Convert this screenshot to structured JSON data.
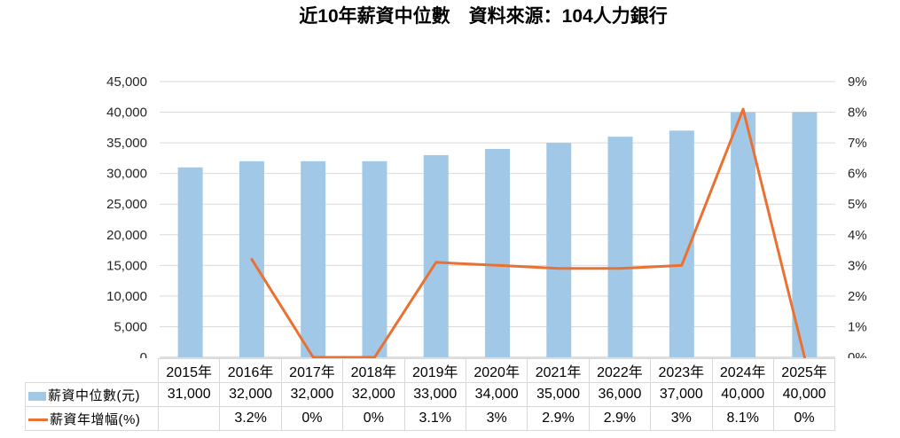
{
  "title": "近10年薪資中位數　資料來源：104人力銀行",
  "colors": {
    "bar": "#A2C8E8",
    "line": "#E97132",
    "gridline": "#D9D9D9",
    "baseline": "#BFBFBF",
    "axis_text": "#262626",
    "table_border": "#D9D9D9",
    "table_text": "#000000"
  },
  "chart_data": {
    "type": "bar",
    "subtype": "combo-bar-line",
    "title": "近10年薪資中位數　資料來源：104人力銀行",
    "categories": [
      "2015年",
      "2016年",
      "2017年",
      "2018年",
      "2019年",
      "2020年",
      "2021年",
      "2022年",
      "2023年",
      "2024年",
      "2025年"
    ],
    "series": [
      {
        "name": "薪資中位數(元)",
        "type": "bar",
        "axis": "left",
        "values": [
          31000,
          32000,
          32000,
          32000,
          33000,
          34000,
          35000,
          36000,
          37000,
          40000,
          40000
        ],
        "labels": [
          "31,000",
          "32,000",
          "32,000",
          "32,000",
          "33,000",
          "34,000",
          "35,000",
          "36,000",
          "37,000",
          "40,000",
          "40,000"
        ]
      },
      {
        "name": "薪資年增幅(%)",
        "type": "line",
        "axis": "right",
        "values": [
          null,
          3.2,
          0,
          0,
          3.1,
          3,
          2.9,
          2.9,
          3,
          8.1,
          0
        ],
        "labels": [
          "",
          "3.2%",
          "0%",
          "0%",
          "3.1%",
          "3%",
          "2.9%",
          "2.9%",
          "3%",
          "8.1%",
          "0%"
        ]
      }
    ],
    "left_axis": {
      "min": 0,
      "max": 45000,
      "step": 5000,
      "tick_labels": [
        "0",
        "5,000",
        "10,000",
        "15,000",
        "20,000",
        "25,000",
        "30,000",
        "35,000",
        "40,000",
        "45,000"
      ]
    },
    "right_axis": {
      "min": 0,
      "max": 9,
      "step": 1,
      "tick_labels": [
        "0%",
        "1%",
        "2%",
        "3%",
        "4%",
        "5%",
        "6%",
        "7%",
        "8%",
        "9%"
      ]
    },
    "grid": true,
    "legend_position": "data-table-left-column",
    "xlabel": "",
    "ylabel": ""
  }
}
